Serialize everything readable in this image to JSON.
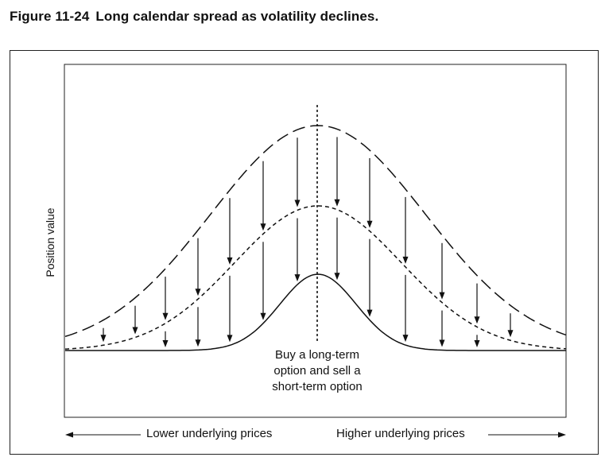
{
  "figure": {
    "number": "Figure 11-24",
    "title": "Long calendar spread as volatility declines."
  },
  "axes": {
    "ylabel": "Position value",
    "x_left_label": "Lower underlying prices",
    "x_right_label": "Higher underlying prices"
  },
  "annotation": {
    "lines": [
      "Buy a long-term",
      "option and sell a",
      "short-term option"
    ]
  },
  "curves": [
    {
      "key": "high_volatility",
      "style": "long-dash",
      "color": "#111111"
    },
    {
      "key": "medium_volatility",
      "style": "short-dash",
      "color": "#111111"
    },
    {
      "key": "low_volatility",
      "style": "solid",
      "color": "#111111"
    }
  ]
}
